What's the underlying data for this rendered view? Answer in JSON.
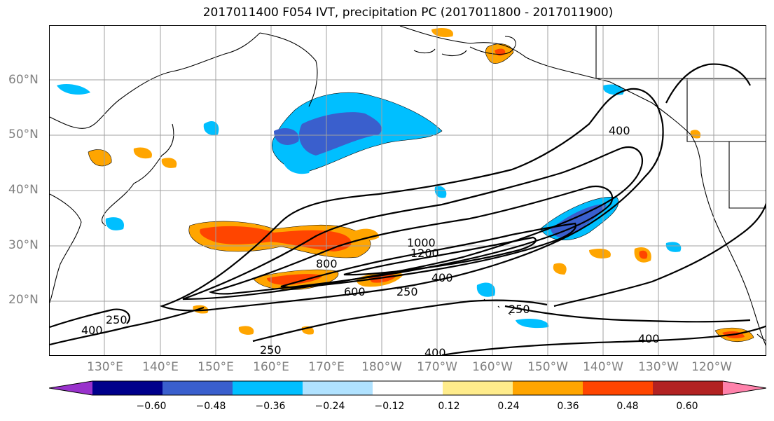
{
  "title": "2017011400 F054 IVT, precipitation PC (2017011800 - 2017011900)",
  "map": {
    "lat_labels": [
      "60°N",
      "50°N",
      "40°N",
      "30°N",
      "20°N"
    ],
    "lon_labels": [
      "130°E",
      "140°E",
      "150°E",
      "160°E",
      "170°E",
      "180°W",
      "170°W",
      "160°W",
      "150°W",
      "140°W",
      "130°W",
      "120°W"
    ],
    "contour_labels": [
      "250",
      "400",
      "250",
      "400",
      "600",
      "800",
      "1000",
      "1200",
      "250",
      "400",
      "250",
      "400",
      "400"
    ]
  },
  "colorbar": {
    "ticks": [
      "−0.60",
      "−0.48",
      "−0.36",
      "−0.24",
      "−0.12",
      "0.12",
      "0.24",
      "0.36",
      "0.48",
      "0.60"
    ],
    "colors": [
      "#9932cc",
      "#00008b",
      "#3a5fcd",
      "#00bfff",
      "#b0e2ff",
      "#ffffff",
      "#ffec8b",
      "#ffa500",
      "#ff4500",
      "#b22222",
      "#ff82ab"
    ]
  }
}
